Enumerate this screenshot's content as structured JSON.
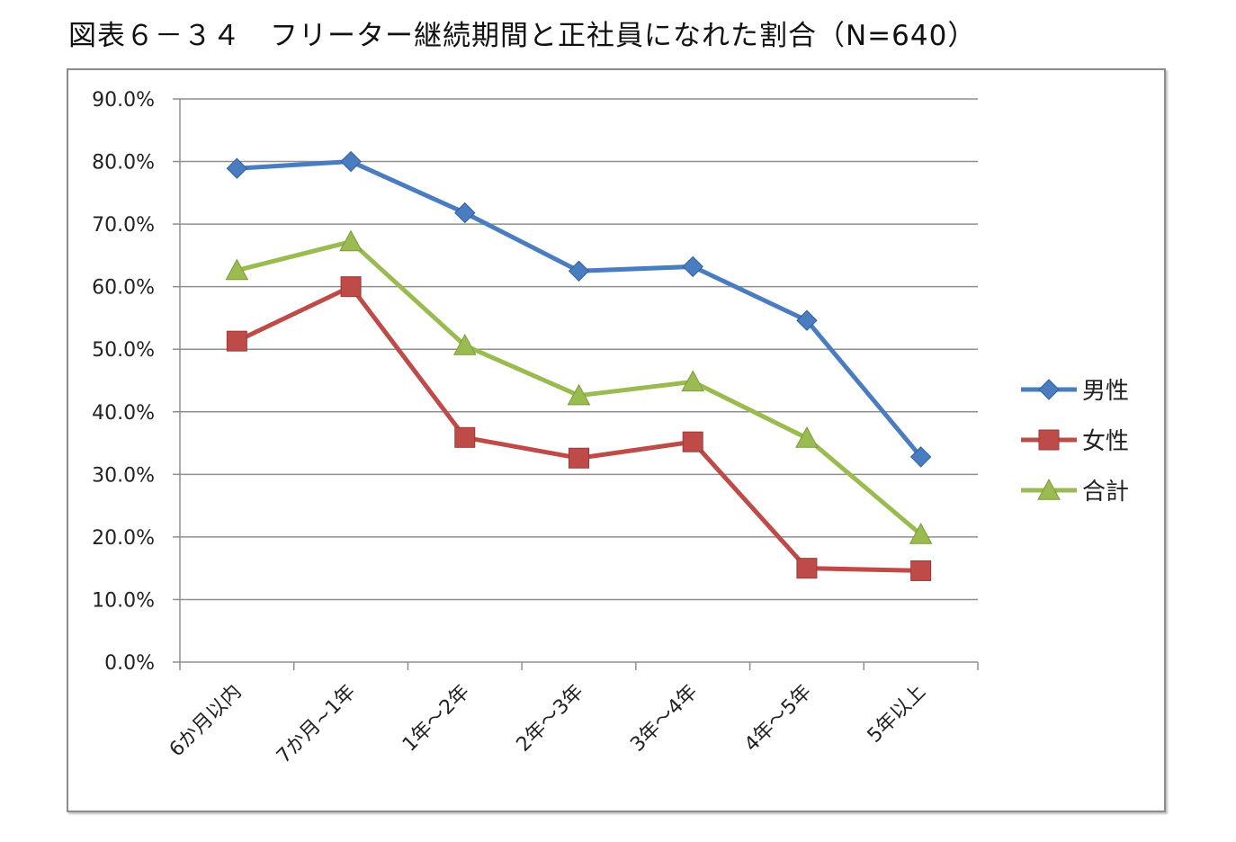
{
  "title": "図表６－３４　フリーター継続期間と正社員になれた割合（N=640）",
  "chart_data": {
    "type": "line",
    "categories": [
      "6か月以内",
      "7か月~1年",
      "1年～2年",
      "2年～3年",
      "3年～4年",
      "4年～5年",
      "5年以上"
    ],
    "series": [
      {
        "name": "男性",
        "color": "#4a7cc0",
        "marker": "diamond",
        "values": [
          78.9,
          80.0,
          71.8,
          62.5,
          63.2,
          54.6,
          32.8
        ]
      },
      {
        "name": "女性",
        "color": "#bf4b48",
        "marker": "square",
        "values": [
          51.3,
          60.0,
          35.9,
          32.6,
          35.2,
          15.0,
          14.6
        ]
      },
      {
        "name": "合計",
        "color": "#99bb4f",
        "marker": "triangle",
        "values": [
          62.6,
          67.2,
          50.6,
          42.6,
          44.8,
          35.8,
          20.4
        ]
      }
    ],
    "yticks": [
      "0.0%",
      "10.0%",
      "20.0%",
      "30.0%",
      "40.0%",
      "50.0%",
      "60.0%",
      "70.0%",
      "80.0%",
      "90.0%"
    ],
    "ylim": [
      0,
      90
    ],
    "grid": true,
    "legend": "right"
  }
}
